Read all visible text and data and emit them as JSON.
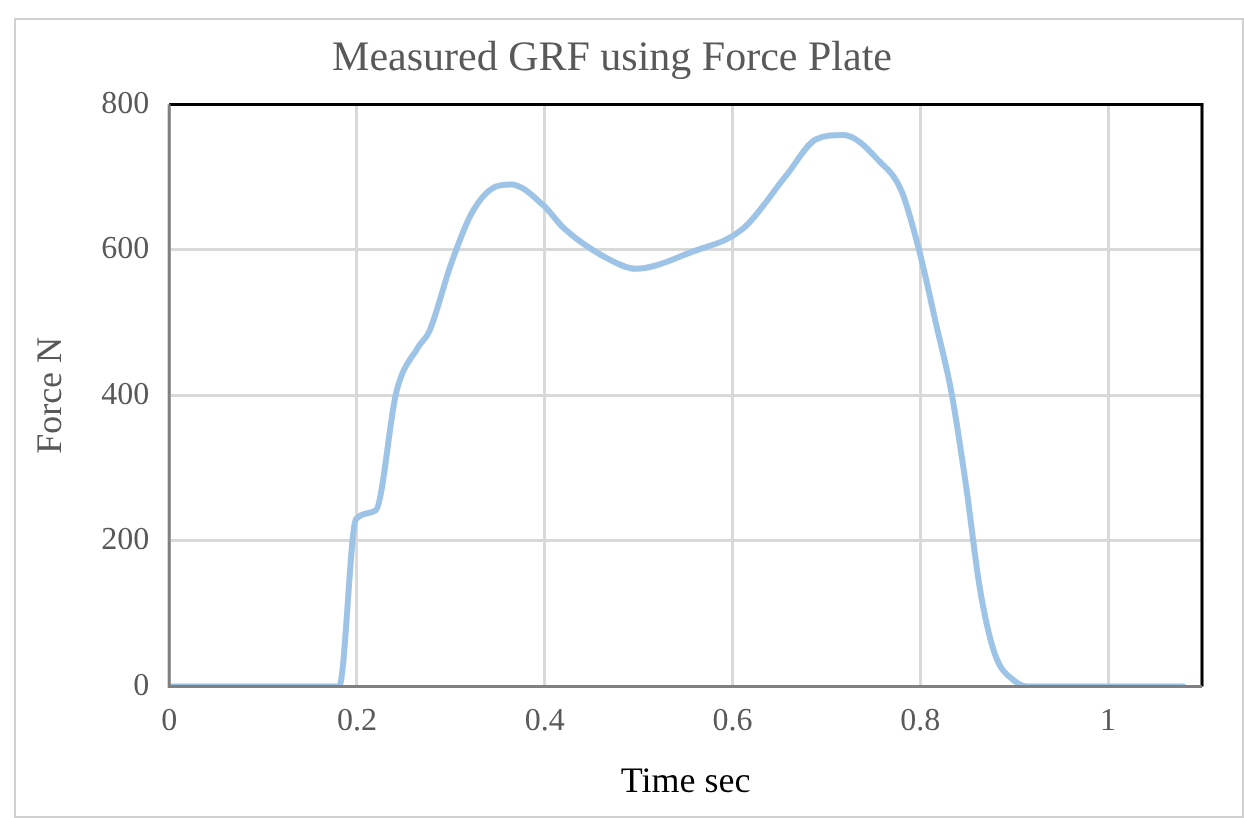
{
  "chart_data": {
    "type": "line",
    "title": "Measured GRF using Force Plate",
    "xlabel": "Time sec",
    "ylabel": "Force N",
    "series": [
      {
        "color": "#9dc3e6",
        "x": [
          0,
          0.1,
          0.169,
          0.181,
          0.199,
          0.22,
          0.242,
          0.265,
          0.277,
          0.3,
          0.322,
          0.348,
          0.364,
          0.398,
          0.421,
          0.467,
          0.497,
          0.558,
          0.611,
          0.657,
          0.689,
          0.718,
          0.757,
          0.78,
          0.799,
          0.817,
          0.833,
          0.849,
          0.863,
          0.879,
          0.902,
          0.915,
          1,
          1.08
        ],
        "values": [
          0,
          0,
          0,
          0,
          230,
          242,
          405,
          466,
          488,
          580,
          650,
          687,
          690,
          662,
          629,
          588,
          574,
          598,
          629,
          702,
          752,
          758,
          721,
          681,
          598,
          497,
          405,
          273,
          138,
          46,
          6,
          0,
          0,
          0
        ]
      }
    ],
    "xlim": [
      0,
      1.1
    ],
    "xticks": [
      0,
      0.2,
      0.4,
      0.6,
      0.8,
      1
    ],
    "ylim": [
      0,
      800
    ],
    "yticks": [
      0,
      200,
      400,
      600,
      800
    ],
    "grid": true,
    "legend": false,
    "marker": "none",
    "line_style": "solid"
  }
}
